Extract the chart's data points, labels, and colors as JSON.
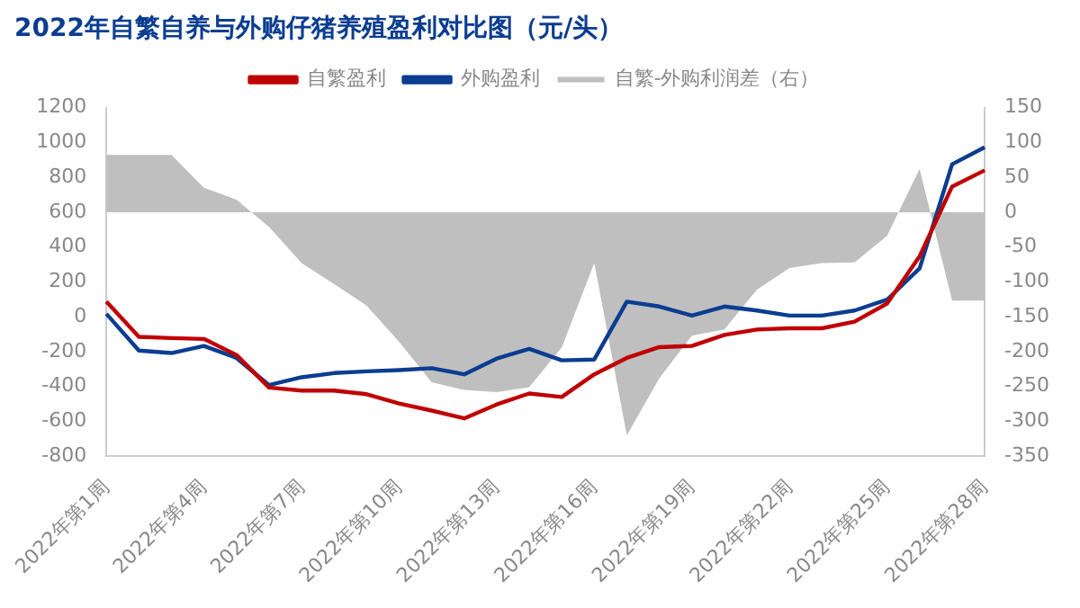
{
  "chart_data": {
    "type": "line",
    "title": "2022年自繁自养与外购仔猪养殖盈利对比图（元/头）",
    "categories": [
      "2022年第1周",
      null,
      null,
      "2022年第4周",
      null,
      null,
      "2022年第7周",
      null,
      null,
      "2022年第10周",
      null,
      null,
      "2022年第13周",
      null,
      null,
      "2022年第16周",
      null,
      null,
      "2022年第19周",
      null,
      null,
      "2022年第22周",
      null,
      null,
      "2022年第25周",
      null,
      null,
      "2022年第28周"
    ],
    "series": [
      {
        "name": "自繁-外购利润差（右）",
        "type": "area",
        "axis": "y2",
        "color": "#bfbfbf",
        "values": [
          82,
          82,
          82,
          35,
          18,
          -21,
          -73,
          -103,
          -134,
          -186,
          -244,
          -255,
          -258,
          -251,
          -194,
          -73,
          -320,
          -238,
          -177,
          -168,
          -111,
          -80,
          -73,
          -72,
          -34,
          62,
          -127,
          -127
        ]
      },
      {
        "name": "自繁盈利",
        "color": "#c00000",
        "values": [
          87,
          -115,
          -122,
          -127,
          -219,
          -406,
          -423,
          -423,
          -444,
          -497,
          -538,
          -583,
          -503,
          -440,
          -460,
          -330,
          -236,
          -174,
          -167,
          -104,
          -73,
          -66,
          -66,
          -28,
          76,
          347,
          747,
          840
        ]
      },
      {
        "name": "外购盈利",
        "color": "#0b3d91",
        "values": [
          17,
          -194,
          -208,
          -167,
          -236,
          -392,
          -347,
          -323,
          -313,
          -306,
          -295,
          -330,
          -240,
          -184,
          -250,
          -245,
          87,
          59,
          7,
          59,
          36,
          7,
          7,
          36,
          98,
          278,
          875,
          972
        ]
      }
    ],
    "ylim": [
      -800,
      1200
    ],
    "yticks": [
      -800,
      -600,
      -400,
      -200,
      0,
      200,
      400,
      600,
      800,
      1000,
      1200
    ],
    "y2lim": [
      -350,
      150
    ],
    "y2ticks": [
      -350,
      -300,
      -250,
      -200,
      -150,
      -100,
      -50,
      0,
      50,
      100,
      150
    ],
    "legend": "top",
    "grid": false,
    "marker": "none",
    "line_style": "solid"
  }
}
